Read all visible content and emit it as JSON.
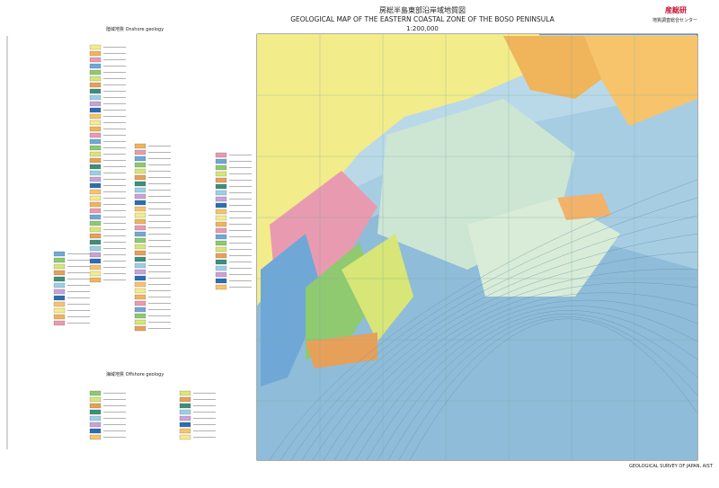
{
  "header": {
    "title_ja": "房総半島東部沿岸域地質図",
    "title_en": "GEOLOGICAL MAP OF THE EASTERN COASTAL ZONE OF THE BOSO PENINSULA",
    "scale": "1:200,000",
    "logo": "産総研",
    "org": "地質調査総合センター"
  },
  "legend": {
    "onshore": "陸域地質 Onshore geology",
    "offshore": "海域地質 Offshore geology"
  },
  "footer": {
    "publisher": "GEOLOGICAL SURVEY OF JAPAN, AIST"
  }
}
